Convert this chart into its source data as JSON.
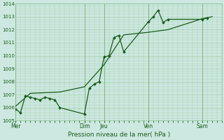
{
  "bg_color": "#cce8e0",
  "grid_color": "#88bb88",
  "line_color": "#1a5c1a",
  "xlabel": "Pression niveau de la mer( hPa )",
  "ylim": [
    1005,
    1014
  ],
  "yticks": [
    1005,
    1006,
    1007,
    1008,
    1009,
    1010,
    1011,
    1012,
    1013,
    1014
  ],
  "x_day_labels": [
    "Mer",
    "Dim",
    "Jeu",
    "Ven",
    "Sam"
  ],
  "x_day_positions": [
    0,
    14,
    18,
    27,
    38
  ],
  "xlim": [
    0,
    42
  ],
  "vert_lines": [
    0,
    14,
    18,
    27,
    38
  ],
  "jagged_x": [
    0,
    1,
    2,
    3,
    4,
    5,
    6,
    7,
    8,
    9,
    14,
    15,
    16,
    17,
    18,
    19,
    20,
    21,
    22,
    27,
    28,
    29,
    30,
    31,
    38,
    39
  ],
  "jagged_y": [
    1005.9,
    1005.6,
    1006.9,
    1006.8,
    1006.7,
    1006.6,
    1006.8,
    1006.7,
    1006.6,
    1006.0,
    1005.5,
    1007.5,
    1007.8,
    1008.0,
    1009.9,
    1010.0,
    1011.4,
    1011.55,
    1010.3,
    1012.6,
    1013.0,
    1013.5,
    1012.55,
    1012.8,
    1012.8,
    1012.9
  ],
  "smooth_x": [
    0,
    3,
    9,
    14,
    18,
    22,
    27,
    31,
    38,
    40
  ],
  "smooth_y": [
    1006.1,
    1007.1,
    1007.2,
    1007.6,
    1009.3,
    1011.6,
    1011.8,
    1012.0,
    1012.85,
    1013.0
  ]
}
